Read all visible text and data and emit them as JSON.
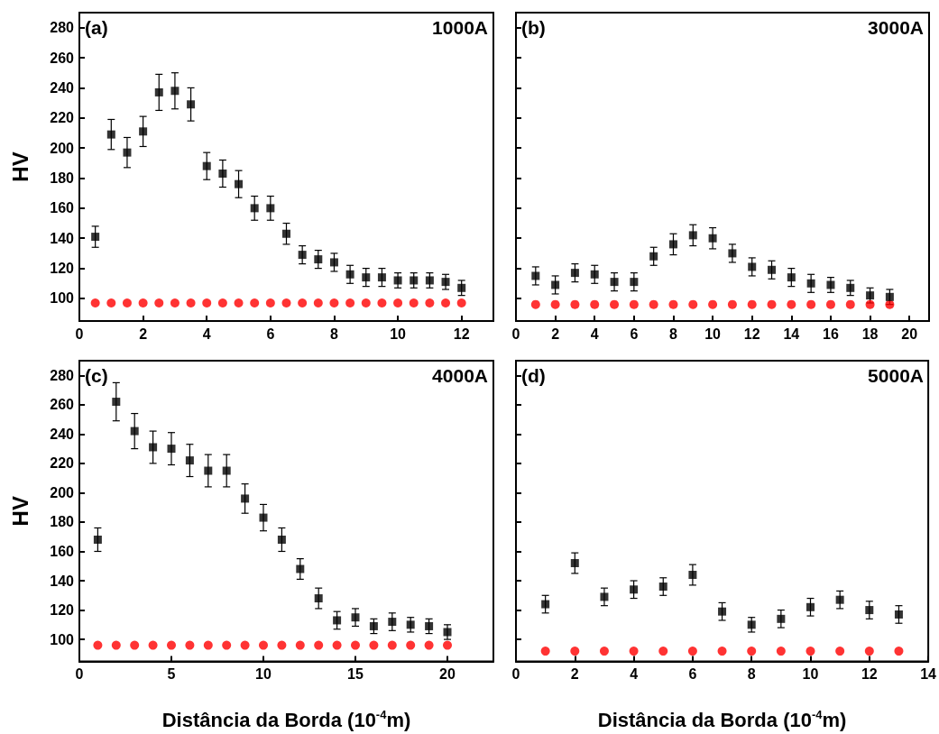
{
  "chart_data": [
    {
      "type": "scatter",
      "ylabel": "HV",
      "annotations": [
        "(a)",
        "1000A"
      ],
      "xlim": [
        0,
        13
      ],
      "xticks": [
        0,
        2,
        4,
        6,
        8,
        10,
        12
      ],
      "ylim": [
        85,
        290
      ],
      "yticks": [
        100,
        120,
        140,
        160,
        180,
        200,
        220,
        240,
        260,
        280
      ],
      "grid": false,
      "series": [
        {
          "color": "#000000",
          "marker": "square",
          "x": [
            0.5,
            1,
            1.5,
            2,
            2.5,
            3,
            3.5,
            4,
            4.5,
            5,
            5.5,
            6,
            6.5,
            7,
            7.5,
            8,
            8.5,
            9,
            9.5,
            10,
            10.5,
            11,
            11.5,
            12
          ],
          "values": [
            141,
            209,
            197,
            211,
            237,
            238,
            229,
            188,
            183,
            176,
            160,
            160,
            143,
            129,
            126,
            124,
            116,
            114,
            114,
            112,
            112,
            112,
            111,
            107
          ],
          "errors": [
            7,
            10,
            10,
            10,
            12,
            12,
            11,
            9,
            9,
            9,
            8,
            8,
            7,
            6,
            6,
            6,
            6,
            6,
            6,
            5,
            5,
            5,
            5,
            5
          ]
        },
        {
          "color": "#ff0000",
          "marker": "circle",
          "x": [
            0.5,
            1,
            1.5,
            2,
            2.5,
            3,
            3.5,
            4,
            4.5,
            5,
            5.5,
            6,
            6.5,
            7,
            7.5,
            8,
            8.5,
            9,
            9.5,
            10,
            10.5,
            11,
            11.5,
            12
          ],
          "values": [
            97,
            97,
            97,
            97,
            97,
            97,
            97,
            97,
            97,
            97,
            97,
            97,
            97,
            97,
            97,
            97,
            97,
            97,
            97,
            97,
            97,
            97,
            97,
            97
          ]
        }
      ]
    },
    {
      "type": "scatter",
      "annotations": [
        "(b)",
        "3000A"
      ],
      "xlim": [
        0,
        21
      ],
      "xticks": [
        0,
        2,
        4,
        6,
        8,
        10,
        12,
        14,
        16,
        18,
        20
      ],
      "ylim": [
        85,
        290
      ],
      "yticks": [
        100,
        120,
        140,
        160,
        180,
        200,
        220,
        240,
        260,
        280
      ],
      "tick_labels": "x",
      "grid": false,
      "series": [
        {
          "color": "#000000",
          "marker": "square",
          "x": [
            1,
            2,
            3,
            4,
            5,
            6,
            7,
            8,
            9,
            10,
            11,
            12,
            13,
            14,
            15,
            16,
            17,
            18,
            19
          ],
          "values": [
            115,
            109,
            117,
            116,
            111,
            111,
            128,
            136,
            142,
            140,
            130,
            121,
            119,
            114,
            110,
            109,
            107,
            102,
            101
          ],
          "errors": [
            6,
            6,
            6,
            6,
            6,
            6,
            6,
            7,
            7,
            7,
            6,
            6,
            6,
            6,
            6,
            5,
            5,
            5,
            5
          ]
        },
        {
          "color": "#ff0000",
          "marker": "circle",
          "x": [
            1,
            2,
            3,
            4,
            5,
            6,
            7,
            8,
            9,
            10,
            11,
            12,
            13,
            14,
            15,
            16,
            17,
            18,
            19
          ],
          "values": [
            96,
            96,
            96,
            96,
            96,
            96,
            96,
            96,
            96,
            96,
            96,
            96,
            96,
            96,
            96,
            96,
            96,
            96,
            96
          ]
        }
      ]
    },
    {
      "type": "scatter",
      "ylabel": "HV",
      "xlabel": "Distância da Borda (10$^{-4}$m)",
      "annotations": [
        "(c)",
        "4000A"
      ],
      "xlim": [
        0,
        22.5
      ],
      "xticks": [
        0,
        5,
        10,
        15,
        20
      ],
      "ylim": [
        85,
        290
      ],
      "yticks": [
        100,
        120,
        140,
        160,
        180,
        200,
        220,
        240,
        260,
        280
      ],
      "grid": false,
      "series": [
        {
          "color": "#000000",
          "marker": "square",
          "x": [
            1,
            2,
            3,
            4,
            5,
            6,
            7,
            8,
            9,
            10,
            11,
            12,
            13,
            14,
            15,
            16,
            17,
            18,
            19,
            20
          ],
          "values": [
            168,
            262,
            242,
            231,
            230,
            222,
            215,
            215,
            196,
            183,
            168,
            148,
            128,
            113,
            115,
            109,
            112,
            110,
            109,
            105
          ],
          "errors": [
            8,
            13,
            12,
            11,
            11,
            11,
            11,
            11,
            10,
            9,
            8,
            7,
            7,
            6,
            6,
            5,
            6,
            5,
            5,
            5
          ]
        },
        {
          "color": "#ff0000",
          "marker": "circle",
          "x": [
            1,
            2,
            3,
            4,
            5,
            6,
            7,
            8,
            9,
            10,
            11,
            12,
            13,
            14,
            15,
            16,
            17,
            18,
            19,
            20
          ],
          "values": [
            96,
            96,
            96,
            96,
            96,
            96,
            96,
            96,
            96,
            96,
            96,
            96,
            96,
            96,
            96,
            96,
            96,
            96,
            96,
            96
          ]
        }
      ]
    },
    {
      "type": "scatter",
      "xlabel": "Distância da Borda (10$^{-4}$m)",
      "annotations": [
        "(d)",
        "5000A"
      ],
      "xlim": [
        0,
        14
      ],
      "xticks": [
        0,
        2,
        4,
        6,
        8,
        10,
        12,
        14
      ],
      "ylim": [
        85,
        290
      ],
      "yticks": [
        100,
        120,
        140,
        160,
        180,
        200,
        220,
        240,
        260,
        280
      ],
      "tick_labels": "x",
      "grid": false,
      "series": [
        {
          "color": "#000000",
          "marker": "square",
          "x": [
            1,
            2,
            3,
            4,
            5,
            6,
            7,
            8,
            9,
            10,
            11,
            12,
            13
          ],
          "values": [
            124,
            152,
            129,
            134,
            136,
            144,
            119,
            110,
            114,
            122,
            127,
            120,
            117
          ],
          "errors": [
            6,
            7,
            6,
            6,
            6,
            7,
            6,
            5,
            6,
            6,
            6,
            6,
            6
          ]
        },
        {
          "color": "#ff0000",
          "marker": "circle",
          "x": [
            1,
            2,
            3,
            4,
            5,
            6,
            7,
            8,
            9,
            10,
            11,
            12,
            13
          ],
          "values": [
            92,
            92,
            92,
            92,
            92,
            92,
            92,
            92,
            92,
            92,
            92,
            92,
            92
          ]
        }
      ]
    }
  ]
}
